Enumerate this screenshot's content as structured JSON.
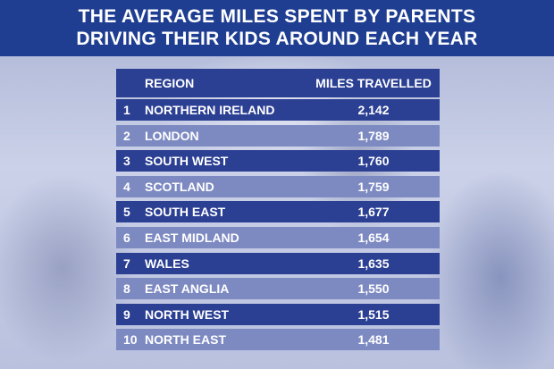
{
  "title_lines": [
    "THE AVERAGE MILES SPENT BY PARENTS",
    "DRIVING THEIR KIDS AROUND EACH YEAR"
  ],
  "chart_data": {
    "type": "table",
    "title": "THE AVERAGE MILES SPENT BY PARENTS DRIVING THEIR KIDS AROUND EACH YEAR",
    "columns": [
      "",
      "REGION",
      "MILES TRAVELLED"
    ],
    "rows": [
      {
        "rank": "1",
        "region": "NORTHERN IRELAND",
        "miles": "2,142"
      },
      {
        "rank": "2",
        "region": "LONDON",
        "miles": "1,789"
      },
      {
        "rank": "3",
        "region": "SOUTH WEST",
        "miles": "1,760"
      },
      {
        "rank": "4",
        "region": "SCOTLAND",
        "miles": "1,759"
      },
      {
        "rank": "5",
        "region": "SOUTH EAST",
        "miles": "1,677"
      },
      {
        "rank": "6",
        "region": "EAST MIDLAND",
        "miles": "1,654"
      },
      {
        "rank": "7",
        "region": "WALES",
        "miles": "1,635"
      },
      {
        "rank": "8",
        "region": "EAST ANGLIA",
        "miles": "1,550"
      },
      {
        "rank": "9",
        "region": "NORTH WEST",
        "miles": "1,515"
      },
      {
        "rank": "10",
        "region": "NORTH EAST",
        "miles": "1,481"
      }
    ]
  },
  "colors": {
    "header_band": "#1f3e92",
    "row_dark": "#2b3f93",
    "row_light": "#7d8ac2",
    "text": "#ffffff"
  }
}
